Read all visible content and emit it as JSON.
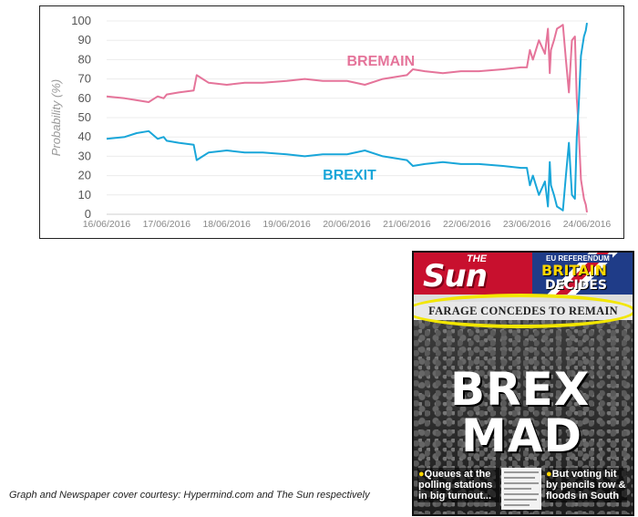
{
  "chart_data": {
    "type": "line",
    "title": "",
    "ylabel": "Probability (%)",
    "xlabel": "",
    "ylim": [
      0,
      100
    ],
    "yticks": [
      "0",
      "10",
      "20",
      "30",
      "40",
      "50",
      "60",
      "70",
      "80",
      "90",
      "100"
    ],
    "categories": [
      "16/06/2016",
      "17/06/2016",
      "18/06/2016",
      "19/06/2016",
      "20/06/2016",
      "21/06/2016",
      "22/06/2016",
      "23/06/2016",
      "24/06/2016"
    ],
    "grid": "horizontal",
    "series": [
      {
        "name": "BREMAIN",
        "color": "#e5749a",
        "points": [
          [
            0,
            61
          ],
          [
            0.3,
            60
          ],
          [
            0.5,
            59
          ],
          [
            0.7,
            58
          ],
          [
            0.85,
            61
          ],
          [
            0.95,
            60
          ],
          [
            1.0,
            62
          ],
          [
            1.2,
            63
          ],
          [
            1.45,
            64
          ],
          [
            1.5,
            72
          ],
          [
            1.6,
            70
          ],
          [
            1.7,
            68
          ],
          [
            2.0,
            67
          ],
          [
            2.3,
            68
          ],
          [
            2.6,
            68
          ],
          [
            3.0,
            69
          ],
          [
            3.3,
            70
          ],
          [
            3.6,
            69
          ],
          [
            4.0,
            69
          ],
          [
            4.3,
            67
          ],
          [
            4.6,
            70
          ],
          [
            5.0,
            72
          ],
          [
            5.1,
            75
          ],
          [
            5.3,
            74
          ],
          [
            5.6,
            73
          ],
          [
            5.9,
            74
          ],
          [
            6.2,
            74
          ],
          [
            6.6,
            75
          ],
          [
            6.9,
            76
          ],
          [
            7.0,
            76
          ],
          [
            7.05,
            85
          ],
          [
            7.1,
            80
          ],
          [
            7.2,
            90
          ],
          [
            7.3,
            83
          ],
          [
            7.35,
            96
          ],
          [
            7.38,
            73
          ],
          [
            7.4,
            85
          ],
          [
            7.45,
            90
          ],
          [
            7.5,
            96
          ],
          [
            7.55,
            97
          ],
          [
            7.6,
            98
          ],
          [
            7.65,
            80
          ],
          [
            7.7,
            63
          ],
          [
            7.75,
            90
          ],
          [
            7.8,
            92
          ],
          [
            7.83,
            60
          ],
          [
            7.86,
            45
          ],
          [
            7.9,
            18
          ],
          [
            7.95,
            8
          ],
          [
            7.98,
            5
          ],
          [
            8.0,
            1
          ]
        ]
      },
      {
        "name": "BREXIT",
        "color": "#19a6d9",
        "points": [
          [
            0,
            39
          ],
          [
            0.3,
            40
          ],
          [
            0.5,
            42
          ],
          [
            0.7,
            43
          ],
          [
            0.85,
            39
          ],
          [
            0.95,
            40
          ],
          [
            1.0,
            38
          ],
          [
            1.2,
            37
          ],
          [
            1.45,
            36
          ],
          [
            1.5,
            28
          ],
          [
            1.6,
            30
          ],
          [
            1.7,
            32
          ],
          [
            2.0,
            33
          ],
          [
            2.3,
            32
          ],
          [
            2.6,
            32
          ],
          [
            3.0,
            31
          ],
          [
            3.3,
            30
          ],
          [
            3.6,
            31
          ],
          [
            4.0,
            31
          ],
          [
            4.3,
            33
          ],
          [
            4.6,
            30
          ],
          [
            5.0,
            28
          ],
          [
            5.1,
            25
          ],
          [
            5.3,
            26
          ],
          [
            5.6,
            27
          ],
          [
            5.9,
            26
          ],
          [
            6.2,
            26
          ],
          [
            6.6,
            25
          ],
          [
            6.9,
            24
          ],
          [
            7.0,
            24
          ],
          [
            7.05,
            15
          ],
          [
            7.1,
            20
          ],
          [
            7.2,
            10
          ],
          [
            7.3,
            17
          ],
          [
            7.35,
            4
          ],
          [
            7.38,
            27
          ],
          [
            7.4,
            15
          ],
          [
            7.45,
            10
          ],
          [
            7.5,
            4
          ],
          [
            7.55,
            3
          ],
          [
            7.6,
            2
          ],
          [
            7.65,
            20
          ],
          [
            7.7,
            37
          ],
          [
            7.75,
            10
          ],
          [
            7.8,
            8
          ],
          [
            7.83,
            40
          ],
          [
            7.86,
            55
          ],
          [
            7.9,
            82
          ],
          [
            7.95,
            92
          ],
          [
            7.98,
            95
          ],
          [
            8.0,
            99
          ]
        ]
      }
    ],
    "annotations": [
      {
        "text": "BREMAIN",
        "series": "BREMAIN"
      },
      {
        "text": "BREXIT",
        "series": "BREXIT"
      }
    ]
  },
  "caption": "Graph and Newspaper cover courtesy: Hypermind.com and The Sun respectively",
  "cover": {
    "the": "THE",
    "logo": "Sun",
    "ref_tag": "EU REFERENDUM",
    "britain": "BRITAIN",
    "decides": "DECIDES",
    "strap": "FARAGE CONCEDES TO REMAIN",
    "headline_1": "BREX",
    "headline_2": "MAD",
    "blurb_left": "Queues at the polling stations in big turnout...",
    "blurb_right": "But voting hit by pencils row & floods in South",
    "highlight_color": "#f2e600"
  }
}
